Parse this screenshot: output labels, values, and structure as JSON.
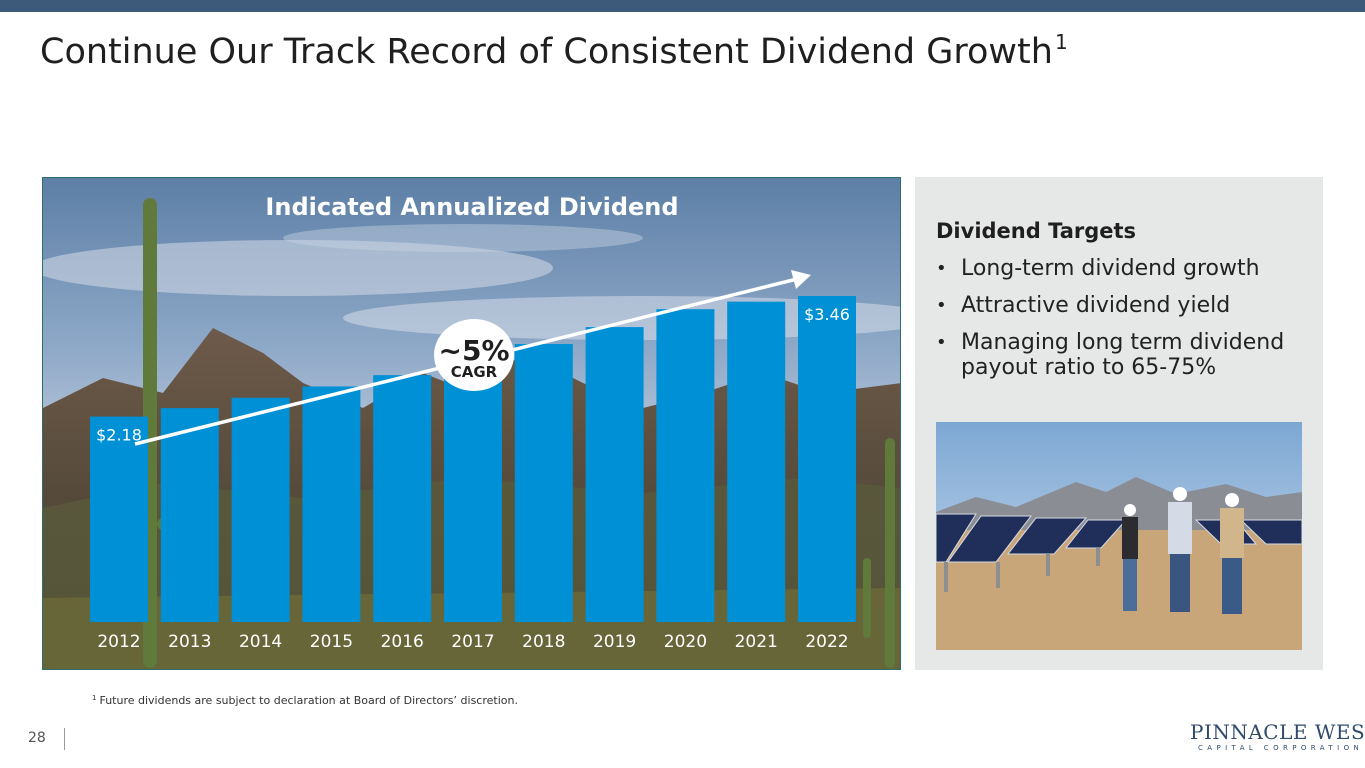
{
  "page": {
    "title": "Continue Our Track Record of Consistent Dividend Growth",
    "title_footnote_marker": "1",
    "page_number": "28"
  },
  "chart_data": {
    "type": "bar",
    "title": "Indicated Annualized Dividend",
    "categories": [
      "2012",
      "2013",
      "2014",
      "2015",
      "2016",
      "2017",
      "2018",
      "2019",
      "2020",
      "2021",
      "2022"
    ],
    "values": [
      2.18,
      2.27,
      2.38,
      2.5,
      2.62,
      2.78,
      2.95,
      3.13,
      3.32,
      3.4,
      3.46
    ],
    "data_labels": [
      {
        "index": 0,
        "text": "$2.18"
      },
      {
        "index": 10,
        "text": "$3.46"
      }
    ],
    "annotation": {
      "value": "~5%",
      "label": "CAGR"
    },
    "ylim": [
      0,
      3.46
    ],
    "xlabel": "",
    "ylabel": "",
    "colors": {
      "bar": "#0090d6",
      "tick_label": "#ffffff",
      "title": "#ffffff",
      "trend_arrow": "#ffffff"
    }
  },
  "targets": {
    "heading": "Dividend Targets",
    "items": [
      "Long-term dividend growth",
      "Attractive dividend yield",
      "Managing long term dividend payout ratio to 65-75%"
    ]
  },
  "footnote": {
    "marker": "1",
    "text": "Future dividends are subject to declaration at Board of Directors’ discretion."
  },
  "logo": {
    "name": "PINNACLE WEST",
    "subtitle": "CAPITAL CORPORATION"
  }
}
